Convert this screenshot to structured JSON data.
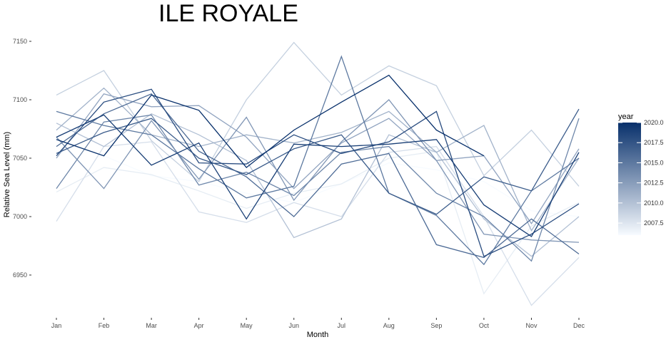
{
  "chart_data": {
    "type": "line",
    "title": "ILE ROYALE",
    "xlabel": "Month",
    "ylabel": "Relative Sea Level (mm)",
    "categories": [
      "Jan",
      "Feb",
      "Mar",
      "Apr",
      "May",
      "Jun",
      "Jul",
      "Aug",
      "Sep",
      "Oct",
      "Nov",
      "Dec"
    ],
    "yticks": [
      6950,
      7000,
      7050,
      7100,
      7150
    ],
    "ylim": [
      6915,
      7160
    ],
    "grid": false,
    "legend": {
      "title": "year",
      "position": "right",
      "ticks": [
        2007.5,
        2010.0,
        2012.5,
        2015.0,
        2017.5,
        2020.0
      ],
      "range": [
        2006,
        2020
      ],
      "color_low": "#f7fbff",
      "color_high": "#08306b"
    },
    "series": [
      {
        "year": 2006,
        "values": [
          7066,
          7052,
          7035,
          7030,
          7020,
          7012,
          7028,
          7046,
          7040,
          7030,
          7005,
          7000
        ]
      },
      {
        "year": 2007,
        "values": [
          7021,
          7042,
          7036,
          7022,
          7007,
          7020,
          7028,
          7050,
          7056,
          6934,
          6992,
          7012
        ]
      },
      {
        "year": 2008,
        "values": [
          6996,
          7060,
          7064,
          7004,
          6995,
          7012,
          7000,
          7055,
          7060,
          7000,
          6924,
          6965
        ]
      },
      {
        "year": 2009,
        "values": [
          7104,
          7125,
          7065,
          7030,
          7100,
          7149,
          7104,
          7129,
          7112,
          7035,
          7074,
          7026
        ]
      },
      {
        "year": 2010,
        "values": [
          7080,
          7060,
          7088,
          7070,
          7048,
          6982,
          6998,
          7070,
          7055,
          6998,
          6966,
          7000
        ]
      },
      {
        "year": 2011,
        "values": [
          7074,
          7110,
          7070,
          7060,
          7070,
          7063,
          7072,
          7090,
          7055,
          7078,
          6988,
          7050
        ]
      },
      {
        "year": 2012,
        "values": [
          7050,
          7105,
          7094,
          7095,
          7068,
          7024,
          7063,
          7084,
          7048,
          7052,
          6994,
          7058
        ]
      },
      {
        "year": 2013,
        "values": [
          7068,
          7024,
          7082,
          7032,
          7085,
          7014,
          7064,
          7100,
          7048,
          6985,
          6980,
          6978
        ]
      },
      {
        "year": 2014,
        "values": [
          7024,
          7081,
          7087,
          7027,
          7038,
          7018,
          7055,
          7060,
          7020,
          7000,
          6962,
          7084
        ]
      },
      {
        "year": 2015,
        "values": [
          7090,
          7078,
          7070,
          7041,
          7016,
          7026,
          7137,
          7020,
          7001,
          6959,
          7022,
          7050
        ]
      },
      {
        "year": 2016,
        "values": [
          7060,
          7088,
          7105,
          7056,
          7034,
          7000,
          7045,
          7054,
          6976,
          6965,
          6998,
          6968
        ]
      },
      {
        "year": 2017,
        "values": [
          7054,
          7072,
          7084,
          7050,
          7036,
          7058,
          7070,
          7020,
          7002,
          7034,
          7022,
          7092
        ]
      },
      {
        "year": 2018,
        "values": [
          7052,
          7098,
          7109,
          7046,
          7045,
          7070,
          7054,
          7064,
          7090,
          6966,
          6985,
          7011
        ]
      },
      {
        "year": 2019,
        "values": [
          7068,
          7087,
          7044,
          7063,
          6998,
          7062,
          7060,
          7062,
          7066,
          7010,
          6983,
          7055
        ]
      },
      {
        "year": 2020,
        "values": [
          7066,
          7052,
          7104,
          7091,
          7042,
          7074,
          7098,
          7121,
          7074,
          7052,
          null,
          null
        ]
      }
    ]
  }
}
